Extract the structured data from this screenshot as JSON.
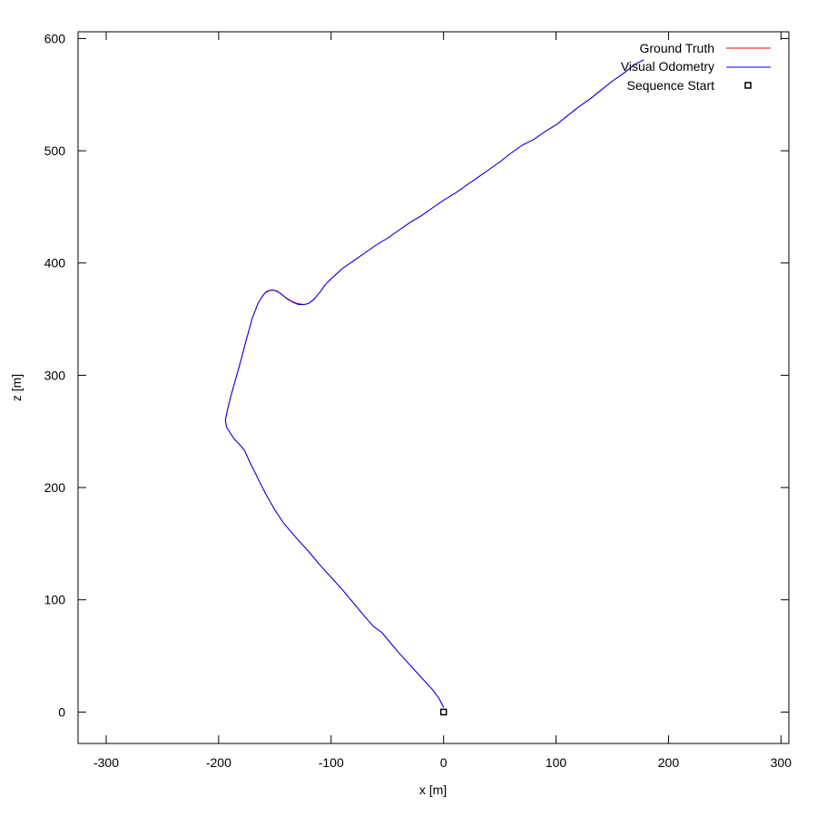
{
  "chart_data": {
    "type": "line",
    "xlabel": "x [m]",
    "ylabel": "z [m]",
    "xlim": [
      -325,
      307
    ],
    "ylim": [
      -28,
      606
    ],
    "xticks": [
      -300,
      -200,
      -100,
      0,
      100,
      200,
      300
    ],
    "yticks": [
      0,
      100,
      200,
      300,
      400,
      500,
      600
    ],
    "legend_position": "top-right",
    "grid": false,
    "series": [
      {
        "name": "Ground Truth",
        "color": "#ff0000",
        "x": [
          0,
          -4,
          -10,
          -20,
          -30,
          -40,
          -50,
          -55,
          -62,
          -70,
          -80,
          -90,
          -100,
          -110,
          -120,
          -130,
          -142,
          -150,
          -158,
          -165,
          -172,
          -177,
          -182,
          -186,
          -190,
          -193,
          -194,
          -192,
          -189,
          -185,
          -180,
          -175,
          -170,
          -165,
          -162,
          -160,
          -157,
          -153,
          -149,
          -145,
          -140,
          -135,
          -130,
          -124,
          -120,
          -115,
          -110,
          -105,
          -100,
          -90,
          -80,
          -70,
          -60,
          -50,
          -40,
          -30,
          -20,
          -10,
          0,
          10,
          20,
          30,
          40,
          50,
          60,
          70,
          80,
          90,
          100,
          110,
          120,
          130,
          140,
          150,
          160,
          170,
          178
        ],
        "y": [
          4,
          12,
          20,
          31,
          42,
          53,
          65,
          71,
          76,
          85,
          97,
          109,
          120,
          131,
          143,
          154,
          168,
          180,
          194,
          208,
          222,
          233,
          239,
          243,
          249,
          254,
          260,
          270,
          282,
          296,
          314,
          333,
          351,
          364,
          369,
          372,
          375,
          376,
          375,
          373,
          369,
          366,
          364,
          363,
          364,
          368,
          374,
          381,
          386,
          395,
          402,
          409,
          416,
          422,
          429,
          436,
          442,
          449,
          456,
          462,
          469,
          476,
          483,
          490,
          498,
          505,
          510,
          517,
          523,
          531,
          539,
          546,
          554,
          562,
          569,
          577,
          581
        ]
      },
      {
        "name": "Visual Odometry",
        "color": "#0000ff",
        "x": [
          0,
          -4,
          -10,
          -20,
          -30,
          -40,
          -50,
          -55,
          -62,
          -70,
          -80,
          -90,
          -100,
          -110,
          -120,
          -130,
          -142,
          -150,
          -158,
          -165,
          -172,
          -177,
          -182,
          -186,
          -190,
          -193,
          -194,
          -192,
          -189,
          -185,
          -180,
          -175,
          -170,
          -165,
          -162,
          -159,
          -156,
          -152,
          -148,
          -144,
          -139,
          -134,
          -129,
          -124,
          -120,
          -115,
          -110,
          -105,
          -100,
          -90,
          -80,
          -70,
          -60,
          -50,
          -40,
          -30,
          -20,
          -10,
          0,
          10,
          20,
          30,
          40,
          50,
          60,
          70,
          80,
          90,
          100,
          110,
          120,
          130,
          140,
          150,
          160,
          170,
          178
        ],
        "y": [
          4,
          12,
          20,
          31,
          42,
          53,
          65,
          71,
          76,
          85,
          97,
          109,
          120,
          131,
          143,
          154,
          168,
          180,
          194,
          208,
          222,
          233,
          239,
          243,
          249,
          254,
          260,
          270,
          282,
          296,
          314,
          333,
          351,
          364,
          369,
          373,
          375,
          376,
          375,
          372,
          368,
          365,
          363,
          363,
          364,
          368,
          374,
          381,
          386,
          395,
          402,
          409,
          416,
          422,
          429,
          436,
          442,
          449,
          456,
          462,
          469,
          476,
          483,
          490,
          498,
          505,
          510,
          517,
          523,
          531,
          539,
          546,
          554,
          562,
          569,
          577,
          581
        ]
      },
      {
        "name": "Sequence Start",
        "color": "#000000",
        "marker": "square",
        "x": [
          0
        ],
        "y": [
          0
        ]
      }
    ]
  }
}
